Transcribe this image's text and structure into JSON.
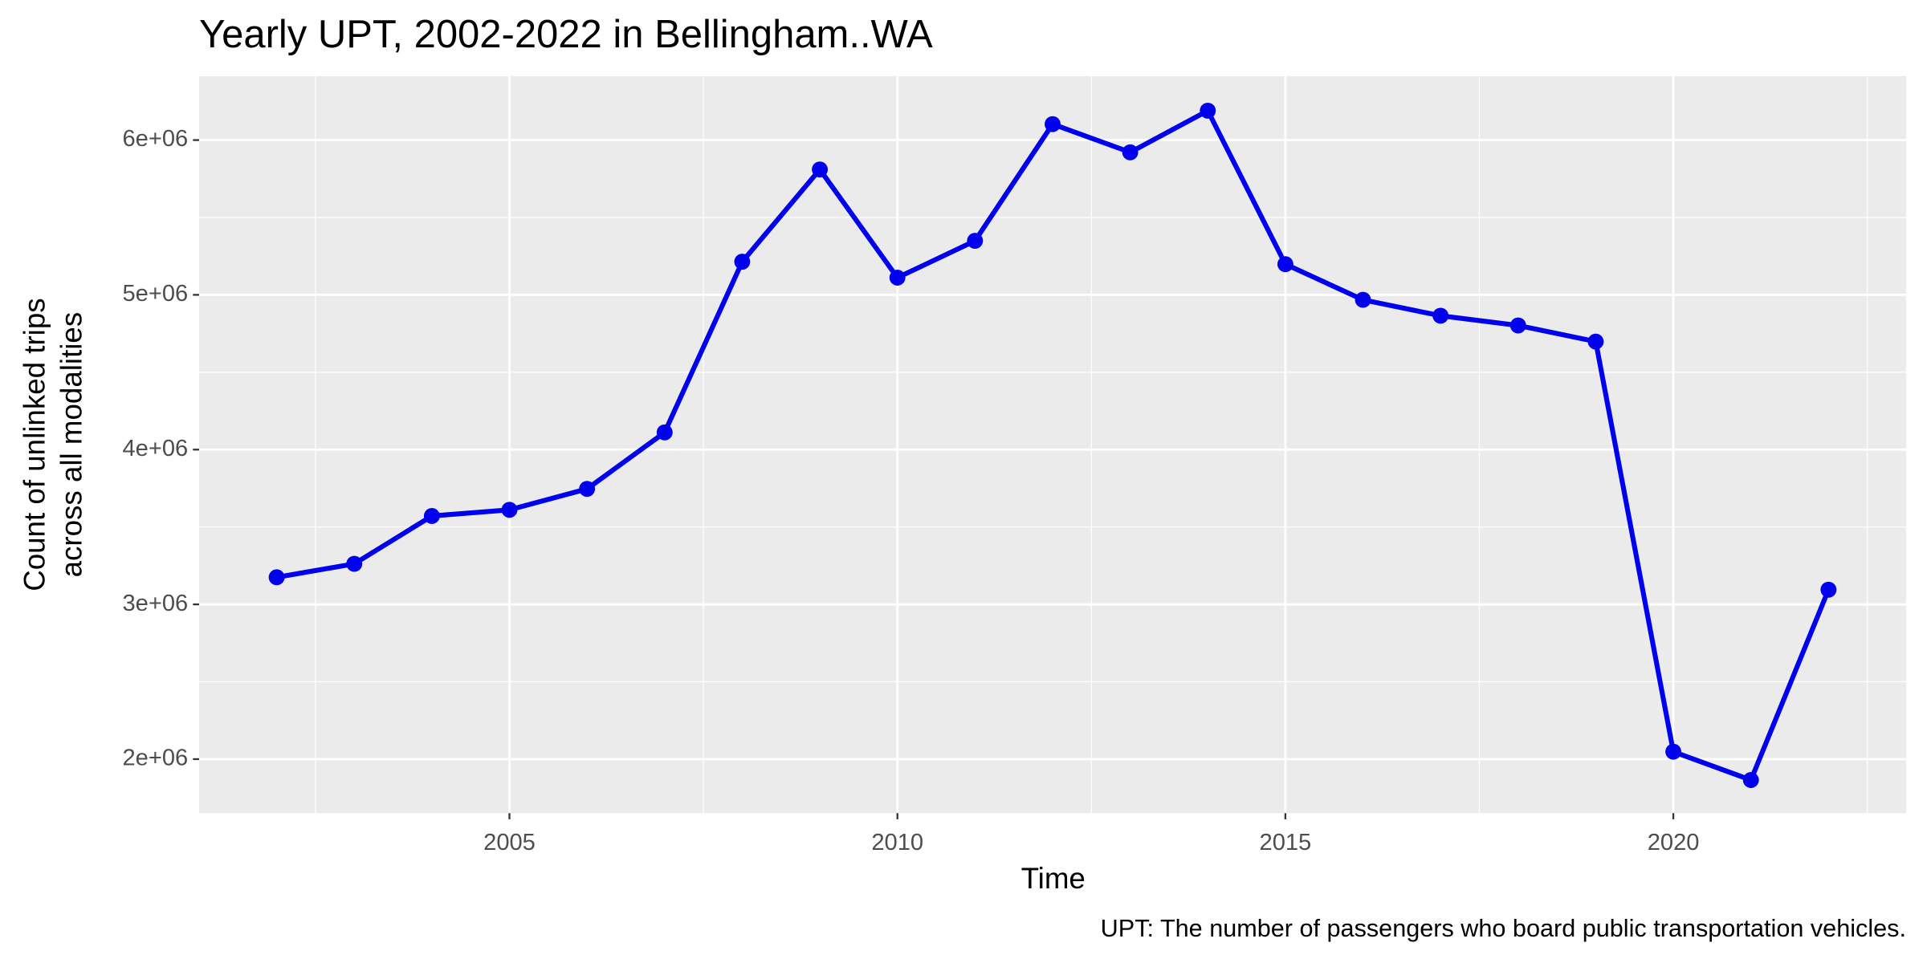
{
  "chart_data": {
    "type": "line",
    "title": "Yearly UPT, 2002-2022 in Bellingham..WA",
    "xlabel": "Time",
    "ylabel": [
      "Count of unlinked trips",
      "across all modalities"
    ],
    "caption": "UPT: The number of passengers who board public transportation vehicles.",
    "x": [
      2002,
      2003,
      2004,
      2005,
      2006,
      2007,
      2008,
      2009,
      2010,
      2011,
      2012,
      2013,
      2014,
      2015,
      2016,
      2017,
      2018,
      2019,
      2020,
      2021,
      2022
    ],
    "series": [
      {
        "name": "UPT",
        "color": "#0000ee",
        "values": [
          3175000,
          3262000,
          3571000,
          3611000,
          3746000,
          4111000,
          5214000,
          5810000,
          5111000,
          5349000,
          6103000,
          5921000,
          6190000,
          5198000,
          4968000,
          4865000,
          4802000,
          4698000,
          2048000,
          1865000,
          3095000
        ]
      }
    ],
    "xlim": [
      2001,
      2023
    ],
    "xticks": [
      2005,
      2010,
      2015,
      2020
    ],
    "ylim": [
      1651000,
      6413000
    ],
    "yticks": [
      {
        "value": 2000000,
        "label": "2e+06"
      },
      {
        "value": 3000000,
        "label": "3e+06"
      },
      {
        "value": 4000000,
        "label": "4e+06"
      },
      {
        "value": 5000000,
        "label": "5e+06"
      },
      {
        "value": 6000000,
        "label": "6e+06"
      }
    ],
    "grid": true
  }
}
